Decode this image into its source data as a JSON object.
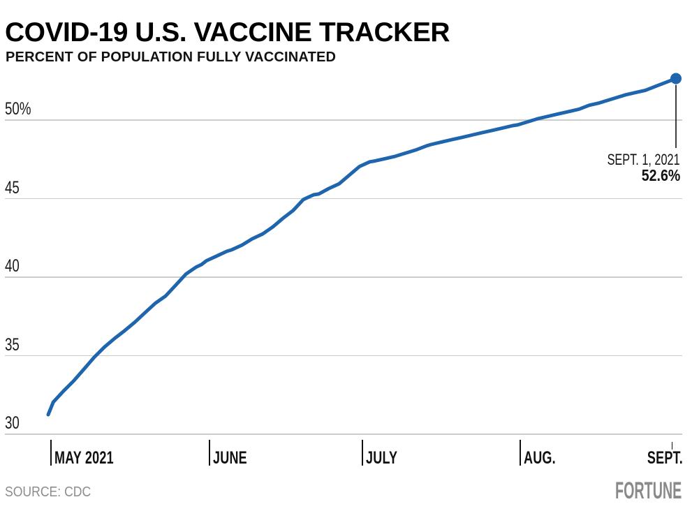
{
  "header": {
    "title": "COVID-19 U.S. VACCINE TRACKER",
    "subtitle": "PERCENT OF POPULATION FULLY VACCINATED"
  },
  "footer": {
    "source": "SOURCE: CDC",
    "brand": "FORTUNE"
  },
  "annotation": {
    "date_label": "SEPT. 1, 2021",
    "value_label": "52.6%"
  },
  "colors": {
    "line": "#1e65ae",
    "grid": "#cccccc",
    "text": "#111111",
    "muted_gray": "#8a8d91",
    "brand_gray": "#8a8a8a"
  },
  "chart_data": {
    "type": "line",
    "title": "COVID-19 U.S. VACCINE TRACKER",
    "subtitle": "PERCENT OF POPULATION FULLY VACCINATED",
    "series_name": "Percent of U.S. population fully vaccinated",
    "x_unit": "days since 2021-05-01",
    "grid": "horizontal",
    "legend": "none",
    "ylim": [
      30,
      53.5
    ],
    "y_axis": {
      "unit": "%",
      "ticks": [
        {
          "label": "50%",
          "value": 50
        },
        {
          "label": "45",
          "value": 45
        },
        {
          "label": "40",
          "value": 40
        },
        {
          "label": "35",
          "value": 35
        },
        {
          "label": "30",
          "value": 30
        }
      ]
    },
    "x_axis": {
      "ticks": [
        {
          "label": "MAY 2021",
          "day": 0,
          "date": "2021-05-01"
        },
        {
          "label": "JUNE",
          "day": 31,
          "date": "2021-06-01"
        },
        {
          "label": "JULY",
          "day": 61,
          "date": "2021-07-01"
        },
        {
          "label": "AUG.",
          "day": 92,
          "date": "2021-08-01"
        },
        {
          "label": "SEPT.",
          "day": 123,
          "date": "2021-09-01"
        }
      ]
    },
    "points": [
      [
        0,
        31.2
      ],
      [
        1,
        32.0
      ],
      [
        3,
        32.7
      ],
      [
        5,
        33.35
      ],
      [
        7,
        34.1
      ],
      [
        9,
        34.85
      ],
      [
        11,
        35.5
      ],
      [
        13,
        36.05
      ],
      [
        15,
        36.55
      ],
      [
        17,
        37.1
      ],
      [
        19,
        37.7
      ],
      [
        21,
        38.3
      ],
      [
        23,
        38.75
      ],
      [
        25,
        39.45
      ],
      [
        27,
        40.15
      ],
      [
        29,
        40.6
      ],
      [
        30,
        40.75
      ],
      [
        31,
        41.0
      ],
      [
        33,
        41.3
      ],
      [
        35,
        41.6
      ],
      [
        36,
        41.7
      ],
      [
        38,
        42.0
      ],
      [
        40,
        42.4
      ],
      [
        42,
        42.7
      ],
      [
        44,
        43.15
      ],
      [
        46,
        43.7
      ],
      [
        48,
        44.2
      ],
      [
        50,
        44.9
      ],
      [
        52,
        45.2
      ],
      [
        53,
        45.25
      ],
      [
        55,
        45.6
      ],
      [
        57,
        45.9
      ],
      [
        59,
        46.45
      ],
      [
        61,
        47.0
      ],
      [
        63,
        47.3
      ],
      [
        64,
        47.35
      ],
      [
        66,
        47.5
      ],
      [
        68,
        47.65
      ],
      [
        70,
        47.85
      ],
      [
        72,
        48.05
      ],
      [
        74,
        48.3
      ],
      [
        75,
        48.4
      ],
      [
        77,
        48.55
      ],
      [
        79,
        48.7
      ],
      [
        81,
        48.85
      ],
      [
        83,
        49.0
      ],
      [
        85,
        49.15
      ],
      [
        87,
        49.3
      ],
      [
        89,
        49.45
      ],
      [
        91,
        49.6
      ],
      [
        92,
        49.65
      ],
      [
        94,
        49.85
      ],
      [
        96,
        50.05
      ],
      [
        98,
        50.2
      ],
      [
        100,
        50.35
      ],
      [
        102,
        50.5
      ],
      [
        104,
        50.65
      ],
      [
        106,
        50.9
      ],
      [
        108,
        51.05
      ],
      [
        110,
        51.25
      ],
      [
        112,
        51.45
      ],
      [
        113,
        51.55
      ],
      [
        115,
        51.7
      ],
      [
        117,
        51.85
      ],
      [
        119,
        52.1
      ],
      [
        121,
        52.35
      ],
      [
        123,
        52.6
      ]
    ],
    "end_point": {
      "date": "2021-09-01",
      "value": 52.6
    }
  }
}
